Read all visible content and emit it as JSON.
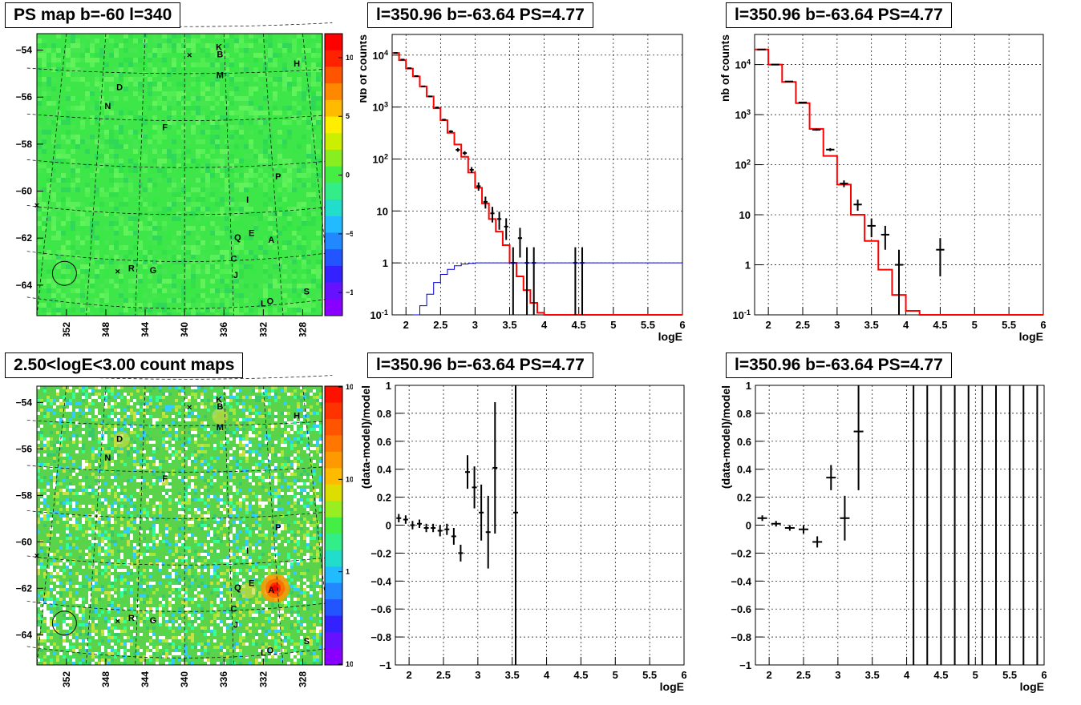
{
  "titles": {
    "map_ps": "PS map b=-60 l=340",
    "map_counts": "2.50<logE<3.00 count maps",
    "spec_fine": "l=350.96 b=-63.64 PS=4.77",
    "spec_coarse": "l=350.96 b=-63.64 PS=4.77",
    "res_fine": "l=350.96 b=-63.64 PS=4.77",
    "res_coarse": "l=350.96 b=-63.64 PS=4.77"
  },
  "map_axes": {
    "y_ticks": [
      "-54",
      "-56",
      "-58",
      "-60",
      "-62",
      "-64"
    ],
    "x_ticks": [
      "352",
      "348",
      "344",
      "340",
      "336",
      "332",
      "328"
    ],
    "ps_colorbar_ticks": [
      "10",
      "5",
      "0",
      "-5",
      "-10"
    ],
    "count_colorbar_ticks": [
      "10^2",
      "10",
      "1",
      "10^-1"
    ]
  },
  "map_labels": [
    "K",
    "B",
    "H",
    "M",
    "D",
    "N",
    "F",
    "P",
    "I",
    "E",
    "Q",
    "A",
    "C",
    "R",
    "G",
    "J",
    "S",
    "L",
    "O"
  ],
  "colors": {
    "model": "#ff0000",
    "data": "#000000",
    "curve": "#0000cc",
    "grid": "#000000"
  },
  "chart_data": [
    {
      "type": "heatmap",
      "title": "PS map b=-60 l=340",
      "xlabel": "",
      "ylabel": "",
      "xlim": [
        355,
        326
      ],
      "ylim": [
        -65.3,
        -53.3
      ],
      "color_range": [
        -12,
        12
      ]
    },
    {
      "type": "line",
      "title": "l=350.96 b=-63.64 PS=4.77",
      "xlabel": "logE",
      "ylabel": "Nb of counts",
      "xlim": [
        1.8,
        6
      ],
      "ylim": [
        0.1,
        25000
      ],
      "log_y": true,
      "x_ticks": [
        2,
        2.5,
        3,
        3.5,
        4,
        4.5,
        5,
        5.5,
        6
      ],
      "y_ticks": [
        "10^-1",
        "1",
        "10",
        "10^2",
        "10^3",
        "10^4"
      ],
      "series": [
        {
          "role": "model",
          "x": [
            1.8,
            1.9,
            2.0,
            2.1,
            2.2,
            2.3,
            2.4,
            2.5,
            2.6,
            2.7,
            2.8,
            2.9,
            3.0,
            3.1,
            3.2,
            3.3,
            3.4,
            3.5,
            3.6,
            3.7,
            3.8,
            3.9,
            4.0,
            6.0
          ],
          "values": [
            11000,
            8000,
            5500,
            3900,
            2500,
            1600,
            950,
            560,
            320,
            190,
            110,
            55,
            28,
            14,
            7,
            4,
            2.2,
            1.0,
            0.55,
            0.3,
            0.17,
            0.11,
            0.1,
            0.1
          ]
        },
        {
          "role": "data",
          "x": [
            1.85,
            1.95,
            2.05,
            2.15,
            2.25,
            2.35,
            2.45,
            2.55,
            2.65,
            2.75,
            2.85,
            2.95,
            3.05,
            3.15,
            3.25,
            3.35,
            3.45,
            3.55,
            3.65,
            3.75,
            3.85,
            4.45,
            4.55
          ],
          "values": [
            11000,
            8200,
            5600,
            3950,
            2500,
            1600,
            980,
            570,
            340,
            150,
            130,
            62,
            30,
            15,
            9,
            7,
            5,
            1,
            3,
            1,
            1,
            1,
            1
          ]
        },
        {
          "role": "curve",
          "x": [
            2.1,
            2.2,
            2.3,
            2.4,
            2.5,
            2.6,
            2.7,
            2.8,
            2.9,
            3.0,
            3.2,
            3.5,
            6.0
          ],
          "values": [
            0.1,
            0.15,
            0.25,
            0.42,
            0.6,
            0.75,
            0.88,
            0.95,
            0.98,
            1,
            1,
            1,
            1
          ]
        }
      ]
    },
    {
      "type": "line",
      "title": "l=350.96 b=-63.64 PS=4.77",
      "xlabel": "logE",
      "ylabel": "nb of counts",
      "xlim": [
        1.8,
        6
      ],
      "ylim": [
        0.1,
        40000
      ],
      "log_y": true,
      "x_ticks": [
        2,
        2.5,
        3,
        3.5,
        4,
        4.5,
        5,
        5.5,
        6
      ],
      "y_ticks": [
        "10^-1",
        "1",
        "10",
        "10^2",
        "10^3",
        "10^4"
      ],
      "series": [
        {
          "role": "model",
          "x": [
            1.8,
            2.0,
            2.2,
            2.4,
            2.6,
            2.8,
            3.0,
            3.2,
            3.4,
            3.6,
            3.8,
            4.0,
            4.2,
            6.0
          ],
          "values": [
            20000,
            10000,
            4500,
            1700,
            520,
            150,
            40,
            10,
            3,
            0.8,
            0.25,
            0.12,
            0.1,
            0.1
          ]
        },
        {
          "role": "data",
          "x": [
            1.9,
            2.1,
            2.3,
            2.5,
            2.7,
            2.9,
            3.1,
            3.3,
            3.5,
            3.7,
            3.9,
            4.5
          ],
          "values": [
            20000,
            10000,
            4600,
            1750,
            500,
            200,
            42,
            16,
            6,
            4,
            1,
            2
          ]
        }
      ]
    },
    {
      "type": "heatmap",
      "title": "2.50<logE<3.00 count maps",
      "xlabel": "",
      "ylabel": "",
      "xlim": [
        355,
        326
      ],
      "ylim": [
        -65.3,
        -53.3
      ],
      "color_range": [
        0.1,
        100
      ],
      "log_color": true
    },
    {
      "type": "scatter",
      "title": "l=350.96 b=-63.64 PS=4.77",
      "xlabel": "logE",
      "ylabel": "(data-model)/model",
      "xlim": [
        1.8,
        6
      ],
      "ylim": [
        -1,
        1
      ],
      "x_ticks": [
        2,
        2.5,
        3,
        3.5,
        4,
        4.5,
        5,
        5.5,
        6
      ],
      "y_ticks": [
        -1,
        -0.8,
        -0.6,
        -0.4,
        -0.2,
        0,
        0.2,
        0.4,
        0.6,
        0.8,
        1
      ],
      "x": [
        1.85,
        1.95,
        2.05,
        2.15,
        2.25,
        2.35,
        2.45,
        2.55,
        2.65,
        2.75,
        2.85,
        2.95,
        3.05,
        3.15,
        3.25,
        3.55
      ],
      "values": [
        0.05,
        0.04,
        0.0,
        0.01,
        -0.02,
        -0.02,
        -0.04,
        -0.03,
        -0.08,
        -0.2,
        0.38,
        0.27,
        0.09,
        -0.05,
        0.41,
        0.09
      ],
      "errors": [
        0.03,
        0.03,
        0.03,
        0.03,
        0.03,
        0.03,
        0.04,
        0.04,
        0.06,
        0.06,
        0.12,
        0.15,
        0.2,
        0.26,
        0.47,
        1.2
      ]
    },
    {
      "type": "scatter",
      "title": "l=350.96 b=-63.64 PS=4.77",
      "xlabel": "logE",
      "ylabel": "(data-model)/model",
      "xlim": [
        1.8,
        6
      ],
      "ylim": [
        -1,
        1
      ],
      "x_ticks": [
        2,
        2.5,
        3,
        3.5,
        4,
        4.5,
        5,
        5.5,
        6
      ],
      "y_ticks": [
        -1,
        -0.8,
        -0.6,
        -0.4,
        -0.2,
        0,
        0.2,
        0.4,
        0.6,
        0.8,
        1
      ],
      "x": [
        1.9,
        2.1,
        2.3,
        2.5,
        2.7,
        2.9,
        3.1,
        3.3
      ],
      "values": [
        0.05,
        0.01,
        -0.02,
        -0.03,
        -0.12,
        0.34,
        0.05,
        0.67
      ],
      "errors": [
        0.02,
        0.02,
        0.02,
        0.03,
        0.04,
        0.09,
        0.16,
        0.42
      ],
      "full_range_bars_x": [
        4.1,
        4.3,
        4.5,
        4.7,
        4.9,
        5.1,
        5.3,
        5.5,
        5.7,
        5.9
      ]
    }
  ]
}
